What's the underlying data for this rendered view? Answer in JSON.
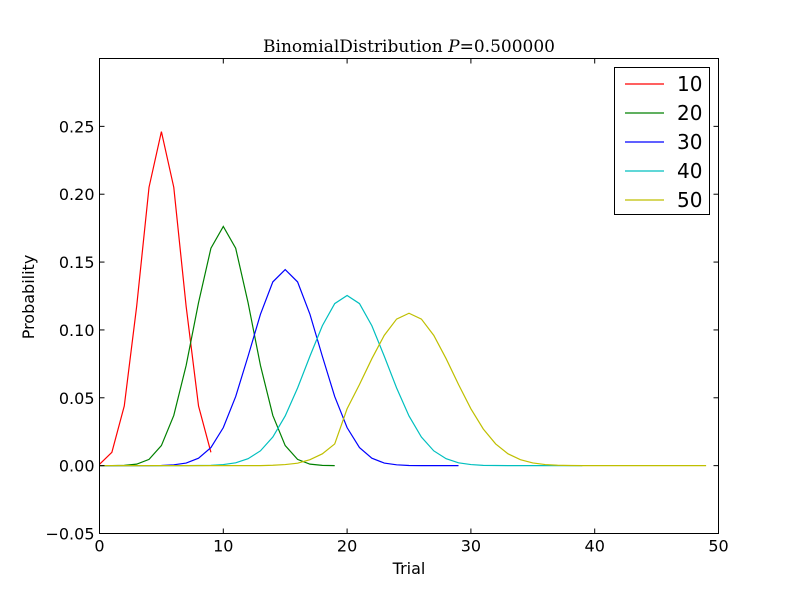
{
  "chart_data": {
    "type": "line",
    "title": "BinomialDistribution P=0.500000",
    "title_main": "BinomialDistribution",
    "title_var": "P",
    "title_value": "=0.500000",
    "xlabel": "Trial",
    "ylabel": "Probability",
    "xlim": [
      0,
      50
    ],
    "ylim": [
      -0.05,
      0.3
    ],
    "xticks": [
      0,
      10,
      20,
      30,
      40,
      50
    ],
    "xtick_labels": [
      "0",
      "10",
      "20",
      "30",
      "40",
      "50"
    ],
    "yticks": [
      -0.05,
      0.0,
      0.05,
      0.1,
      0.15,
      0.2,
      0.25
    ],
    "ytick_labels": [
      "−0.05",
      "0.00",
      "0.05",
      "0.10",
      "0.15",
      "0.20",
      "0.25"
    ],
    "grid": false,
    "legend_position": "top-right",
    "series": [
      {
        "name": "10",
        "color": "#ff0000",
        "n": 10,
        "p": 0.5,
        "x": [
          0,
          1,
          2,
          3,
          4,
          5,
          6,
          7,
          8,
          9
        ],
        "y": [
          0.001,
          0.0098,
          0.0439,
          0.1172,
          0.2051,
          0.2461,
          0.2051,
          0.1172,
          0.0439,
          0.0098
        ]
      },
      {
        "name": "20",
        "color": "#008000",
        "n": 20,
        "p": 0.5,
        "x": [
          0,
          1,
          2,
          3,
          4,
          5,
          6,
          7,
          8,
          9,
          10,
          11,
          12,
          13,
          14,
          15,
          16,
          17,
          18,
          19
        ],
        "y": [
          0.0,
          0.0,
          0.0002,
          0.0011,
          0.0046,
          0.0148,
          0.037,
          0.0739,
          0.1201,
          0.1602,
          0.1762,
          0.1602,
          0.1201,
          0.0739,
          0.037,
          0.0148,
          0.0046,
          0.0011,
          0.0002,
          0.0
        ]
      },
      {
        "name": "30",
        "color": "#0000ff",
        "n": 30,
        "p": 0.5,
        "x": [
          0,
          1,
          2,
          3,
          4,
          5,
          6,
          7,
          8,
          9,
          10,
          11,
          12,
          13,
          14,
          15,
          16,
          17,
          18,
          19,
          20,
          21,
          22,
          23,
          24,
          25,
          26,
          27,
          28,
          29
        ],
        "y": [
          0.0,
          0.0,
          0.0,
          0.0,
          0.0,
          0.0001,
          0.0006,
          0.0019,
          0.0055,
          0.0133,
          0.028,
          0.0509,
          0.0806,
          0.1115,
          0.1354,
          0.1445,
          0.1354,
          0.1115,
          0.0806,
          0.0509,
          0.028,
          0.0133,
          0.0055,
          0.0019,
          0.0006,
          0.0001,
          0.0,
          0.0,
          0.0,
          0.0
        ]
      },
      {
        "name": "40",
        "color": "#00bfbf",
        "n": 40,
        "p": 0.5,
        "x": [
          0,
          1,
          2,
          3,
          4,
          5,
          6,
          7,
          8,
          9,
          10,
          11,
          12,
          13,
          14,
          15,
          16,
          17,
          18,
          19,
          20,
          21,
          22,
          23,
          24,
          25,
          26,
          27,
          28,
          29,
          30,
          31,
          32,
          33,
          34,
          35,
          36,
          37,
          38,
          39
        ],
        "y": [
          0.0,
          0.0,
          0.0,
          0.0,
          0.0,
          0.0,
          0.0,
          0.0,
          0.0001,
          0.0002,
          0.0008,
          0.0021,
          0.0051,
          0.0109,
          0.0211,
          0.0366,
          0.0572,
          0.0807,
          0.1031,
          0.1194,
          0.1254,
          0.1194,
          0.1031,
          0.0807,
          0.0572,
          0.0366,
          0.0211,
          0.0109,
          0.0051,
          0.0021,
          0.0008,
          0.0002,
          0.0001,
          0.0,
          0.0,
          0.0,
          0.0,
          0.0,
          0.0,
          0.0
        ]
      },
      {
        "name": "50",
        "color": "#bfbf00",
        "n": 50,
        "p": 0.5,
        "x": [
          0,
          1,
          2,
          3,
          4,
          5,
          6,
          7,
          8,
          9,
          10,
          11,
          12,
          13,
          14,
          15,
          16,
          17,
          18,
          19,
          20,
          21,
          22,
          23,
          24,
          25,
          26,
          27,
          28,
          29,
          30,
          31,
          32,
          33,
          34,
          35,
          36,
          37,
          38,
          39,
          40,
          41,
          42,
          43,
          44,
          45,
          46,
          47,
          48,
          49
        ],
        "y": [
          0.0,
          0.0,
          0.0,
          0.0,
          0.0,
          0.0,
          0.0,
          0.0,
          0.0,
          0.0,
          0.0,
          0.0,
          0.0,
          0.0,
          0.0003,
          0.0008,
          0.0018,
          0.0044,
          0.0087,
          0.016,
          0.0419,
          0.0598,
          0.0788,
          0.096,
          0.108,
          0.1123,
          0.108,
          0.096,
          0.0788,
          0.0598,
          0.0419,
          0.027,
          0.016,
          0.0087,
          0.0044,
          0.002,
          0.0008,
          0.0003,
          0.0001,
          0.0,
          0.0,
          0.0,
          0.0,
          0.0,
          0.0,
          0.0,
          0.0,
          0.0,
          0.0,
          0.0
        ]
      }
    ]
  }
}
